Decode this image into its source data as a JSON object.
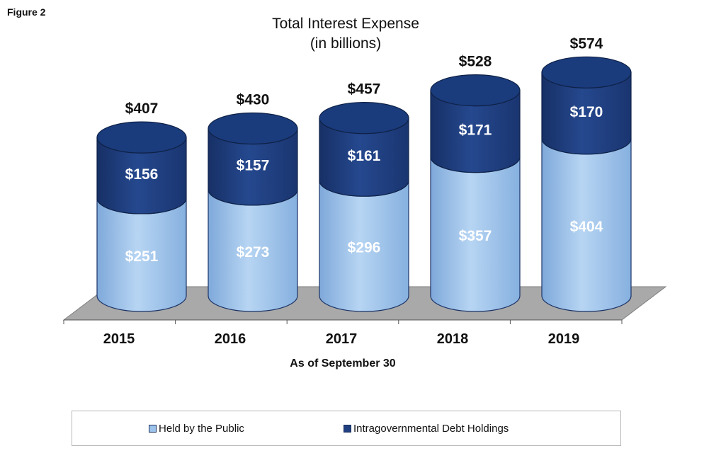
{
  "figure_label": "Figure 2",
  "chart_data": {
    "type": "bar",
    "stacked": true,
    "title": "Total Interest Expense",
    "subtitle": "(in billions)",
    "xlabel": "As of September 30",
    "ylabel": "",
    "categories": [
      "2015",
      "2016",
      "2017",
      "2018",
      "2019"
    ],
    "series": [
      {
        "name": "Held by the Public",
        "values": [
          251,
          273,
          296,
          357,
          404
        ],
        "labels": [
          "$251",
          "$273",
          "$296",
          "$357",
          "$404"
        ],
        "color": "#9dc3ec"
      },
      {
        "name": "Intragovernmental Debt Holdings",
        "values": [
          156,
          157,
          161,
          171,
          170
        ],
        "labels": [
          "$156",
          "$157",
          "$161",
          "$171",
          "$170"
        ],
        "color": "#1f3f80"
      }
    ],
    "totals": [
      407,
      430,
      457,
      528,
      574
    ],
    "total_labels": [
      "$407",
      "$430",
      "$457",
      "$528",
      "$574"
    ],
    "legend_position": "bottom",
    "grid": false
  }
}
